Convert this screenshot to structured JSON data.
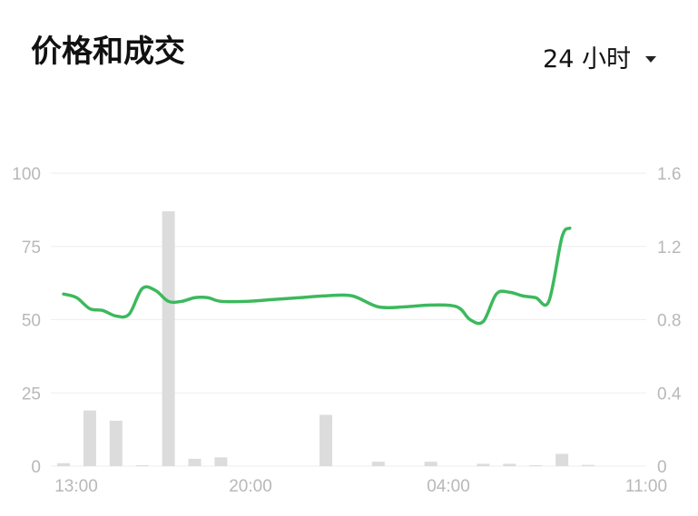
{
  "header": {
    "title": "价格和成交",
    "range_label": "24 小时"
  },
  "chart_data": {
    "type": "line+bar",
    "x_ticks": [
      "13:00",
      "20:00",
      "04:00",
      "11:00"
    ],
    "left_axis": {
      "ticks": [
        "0",
        "25",
        "50",
        "75",
        "100"
      ],
      "ylim": [
        0,
        100
      ]
    },
    "right_axis": {
      "ticks": [
        "0",
        "0.4",
        "0.8",
        "1.2",
        "1.6"
      ],
      "ylim": [
        0,
        1.6
      ]
    },
    "price_line": {
      "axis": "right",
      "color": "#3cb95c",
      "points": [
        [
          0,
          0.94
        ],
        [
          0.5,
          0.92
        ],
        [
          1,
          0.86
        ],
        [
          1.5,
          0.85
        ],
        [
          2,
          0.82
        ],
        [
          2.5,
          0.83
        ],
        [
          3,
          0.97
        ],
        [
          3.5,
          0.96
        ],
        [
          4,
          0.9
        ],
        [
          4.5,
          0.9
        ],
        [
          5,
          0.92
        ],
        [
          5.5,
          0.92
        ],
        [
          6,
          0.9
        ],
        [
          7,
          0.9
        ],
        [
          8,
          0.91
        ],
        [
          9,
          0.92
        ],
        [
          10,
          0.93
        ],
        [
          11,
          0.93
        ],
        [
          12,
          0.87
        ],
        [
          13,
          0.87
        ],
        [
          14,
          0.88
        ],
        [
          15,
          0.87
        ],
        [
          15.5,
          0.8
        ],
        [
          16,
          0.79
        ],
        [
          16.5,
          0.94
        ],
        [
          17,
          0.95
        ],
        [
          17.5,
          0.93
        ],
        [
          18,
          0.92
        ],
        [
          18.5,
          0.9
        ],
        [
          19,
          1.25
        ],
        [
          19.3,
          1.3
        ]
      ]
    },
    "volume_bars": {
      "axis": "left",
      "color": "#dcdcdc",
      "values": [
        1,
        19,
        15.5,
        0.3,
        87,
        2.5,
        3,
        0,
        0,
        0,
        17.5,
        0,
        1.5,
        0,
        1.5,
        0,
        0.8,
        0.8,
        0.3,
        4.2,
        0.4
      ]
    },
    "grid": true,
    "gridline_color": "#eeeeee"
  }
}
